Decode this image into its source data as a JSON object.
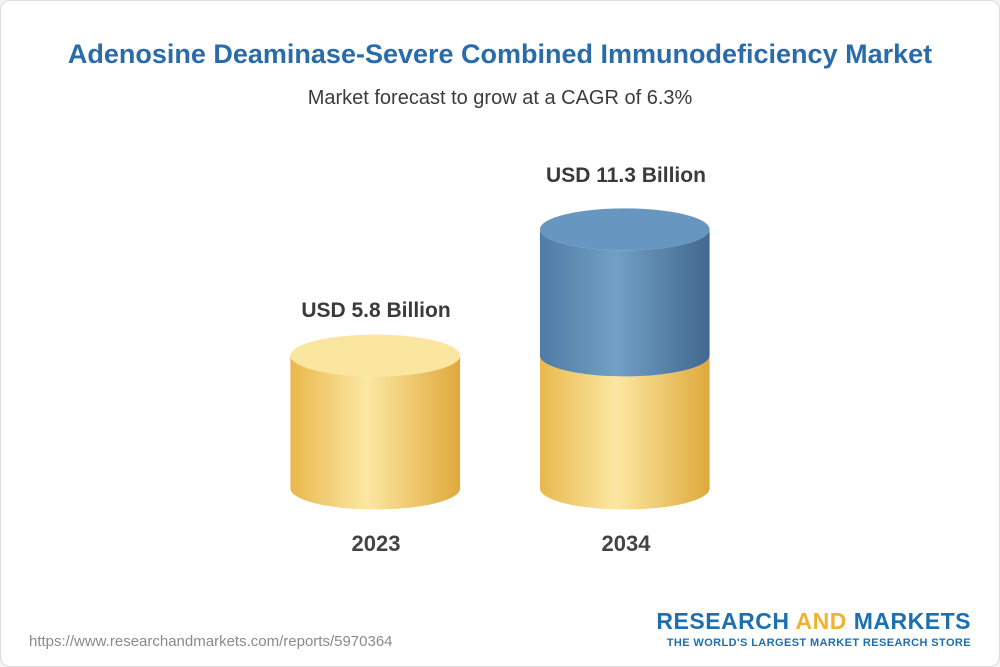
{
  "header": {
    "title": "Adenosine Deaminase-Severe Combined Immunodeficiency Market",
    "subtitle": "Market forecast to grow at a CAGR of 6.3%"
  },
  "chart_data": {
    "type": "bar",
    "style": "3d-cylinder",
    "title": "Adenosine Deaminase-Severe Combined Immunodeficiency Market",
    "subtitle": "Market forecast to grow at a CAGR of 6.3%",
    "cagr_percent": 6.3,
    "unit": "USD Billion",
    "categories": [
      "2023",
      "2034"
    ],
    "values": [
      5.8,
      11.3
    ],
    "value_labels": [
      "USD 5.8 Billion",
      "USD 11.3 Billion"
    ],
    "bars": [
      {
        "category": "2023",
        "segments": [
          {
            "value": 5.8,
            "color_key": "base"
          }
        ]
      },
      {
        "category": "2034",
        "segments": [
          {
            "value": 5.8,
            "color_key": "base"
          },
          {
            "value": 5.5,
            "color_key": "growth"
          }
        ]
      }
    ],
    "colors": {
      "base": {
        "left": "#e9b84d",
        "mid": "#fce7a2",
        "right": "#dfa93c",
        "top": "#fbe6a0"
      },
      "growth": {
        "left": "#4e7ca4",
        "mid": "#719fc5",
        "right": "#42688f",
        "top": "#6797c0"
      }
    },
    "legend_position": "none",
    "axes": "none"
  },
  "footer": {
    "url": "https://www.researchandmarkets.com/reports/5970364",
    "logo": {
      "research": "RESEARCH",
      "and": "AND",
      "markets": "MARKETS",
      "tagline": "THE WORLD'S LARGEST MARKET RESEARCH STORE"
    }
  }
}
